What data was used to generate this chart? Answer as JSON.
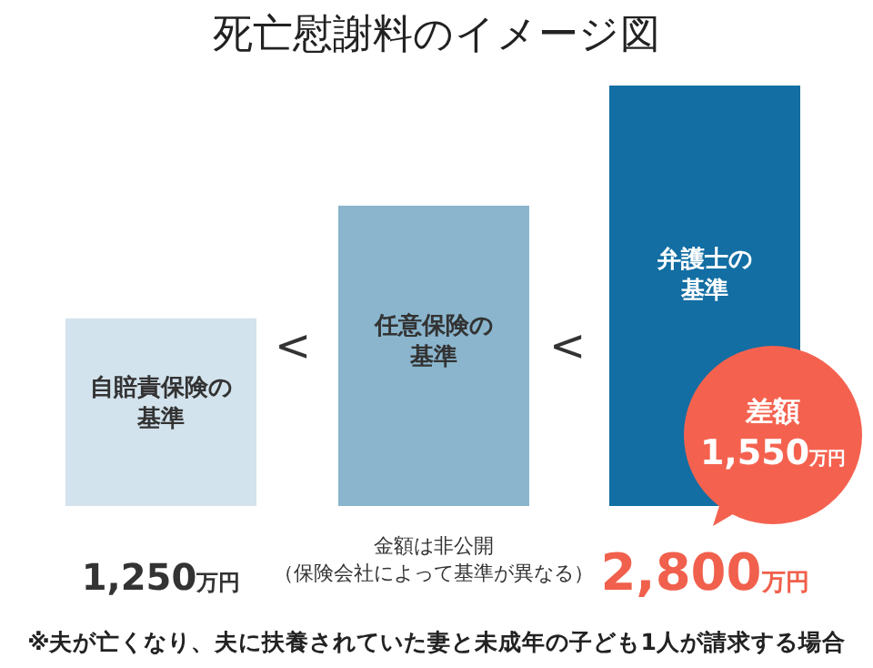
{
  "chart_data": {
    "type": "bar",
    "title": "死亡慰謝料のイメージ図",
    "categories": [
      "自賠責保険の基準",
      "任意保険の基準",
      "弁護士の基準"
    ],
    "values": [
      1250,
      2000,
      2800
    ],
    "colors": [
      "#d3e3ed",
      "#8ab5cd",
      "#126ea3"
    ],
    "value_labels": [
      "1,250万円",
      "金額は非公開（保険会社によって基準が異なる）",
      "2,800万円"
    ],
    "annotations": [
      "<",
      "<",
      "差額1,550万円",
      "※夫が亡くなり、夫に扶養されていた妻と未成年の子ども1人が請求する場合"
    ]
  }
}
